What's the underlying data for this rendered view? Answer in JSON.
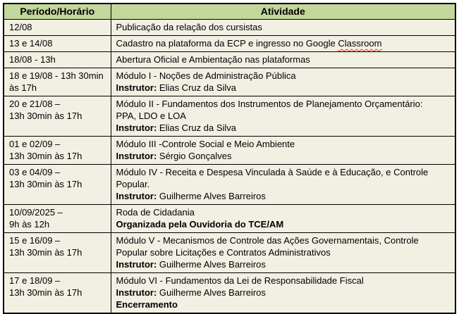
{
  "colors": {
    "header_bg": "#c3d69b",
    "cell_bg": "#f2efe3",
    "border": "#000000",
    "text": "#000000",
    "spellcheck_underline": "#e03020"
  },
  "table": {
    "headers": [
      "Período/Horário",
      "Atividade"
    ],
    "rows": [
      {
        "periodo": [
          "12/08"
        ],
        "atividade": [
          [
            {
              "t": "Publicação da relação dos cursistas"
            }
          ]
        ]
      },
      {
        "periodo": [
          "13 e 14/08"
        ],
        "atividade": [
          [
            {
              "t": "Cadastro na plataforma da ECP e ingresso no Google "
            },
            {
              "t": "Classroom",
              "wavy": true
            }
          ]
        ]
      },
      {
        "periodo": [
          "18/08 - 13h"
        ],
        "atividade": [
          [
            {
              "t": "Abertura Oficial e Ambientação nas plataformas"
            }
          ]
        ]
      },
      {
        "periodo": [
          "18 e 19/08 - 13h 30min",
          "às 17h"
        ],
        "atividade": [
          [
            {
              "t": "Módulo I - Noções de Administração Pública"
            }
          ],
          [
            {
              "t": "Instrutor:",
              "b": true
            },
            {
              "t": " Elias Cruz da Silva"
            }
          ]
        ]
      },
      {
        "periodo": [
          "20 e 21/08 –",
          "13h 30min às 17h"
        ],
        "atividade": [
          [
            {
              "t": "Módulo II - Fundamentos dos Instrumentos de Planejamento Orçamentário:"
            }
          ],
          [
            {
              "t": "PPA, LDO e LOA"
            }
          ],
          [
            {
              "t": "Instrutor:",
              "b": true
            },
            {
              "t": " Elias Cruz da Silva"
            }
          ]
        ]
      },
      {
        "periodo": [
          "01 e 02/09 –",
          "13h 30min às 17h"
        ],
        "atividade": [
          [
            {
              "t": "Módulo III -Controle Social e Meio Ambiente"
            }
          ],
          [
            {
              "t": "Instrutor:",
              "b": true
            },
            {
              "t": " Sérgio Gonçalves"
            }
          ]
        ]
      },
      {
        "periodo": [
          "03 e 04/09 –",
          "13h 30min às 17h"
        ],
        "atividade": [
          [
            {
              "t": "Módulo IV - Receita e Despesa Vinculada à Saúde e à Educação, e Controle"
            }
          ],
          [
            {
              "t": "Popular."
            }
          ],
          [
            {
              "t": "Instrutor:",
              "b": true
            },
            {
              "t": " Guilherme Alves Barreiros"
            }
          ]
        ]
      },
      {
        "periodo": [
          "10/09/2025 –",
          "9h às 12h"
        ],
        "atividade": [
          [
            {
              "t": "Roda de Cidadania"
            }
          ],
          [
            {
              "t": "Organizada pela Ouvidoria do TCE/AM",
              "b": true
            }
          ]
        ]
      },
      {
        "periodo": [
          "15 e 16/09 –",
          "13h 30min às 17h"
        ],
        "atividade": [
          [
            {
              "t": "Módulo V - Mecanismos de Controle das Ações Governamentais, Controle"
            }
          ],
          [
            {
              "t": "Popular sobre Licitações e Contratos Administrativos"
            }
          ],
          [
            {
              "t": "Instrutor:",
              "b": true
            },
            {
              "t": " Guilherme Alves Barreiros"
            }
          ]
        ]
      },
      {
        "periodo": [
          "17 e 18/09 –",
          "13h 30min às 17h"
        ],
        "atividade": [
          [
            {
              "t": "Módulo VI - Fundamentos da Lei de Responsabilidade Fiscal"
            }
          ],
          [
            {
              "t": "Instrutor:",
              "b": true
            },
            {
              "t": " Guilherme Alves Barreiros"
            }
          ],
          [
            {
              "t": "Encerramento",
              "b": true
            }
          ]
        ]
      }
    ]
  }
}
